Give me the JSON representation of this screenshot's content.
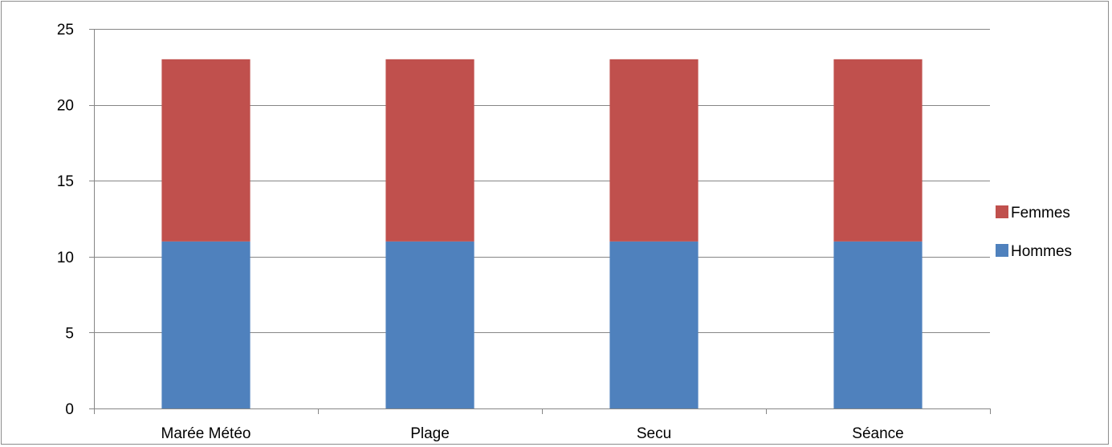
{
  "chart_data": {
    "type": "bar",
    "stacked": true,
    "categories": [
      "Marée Météo",
      "Plage",
      "Secu",
      "Séance"
    ],
    "series": [
      {
        "name": "Hommes",
        "values": [
          11,
          11,
          11,
          11
        ],
        "color": "#4F81BD"
      },
      {
        "name": "Femmes",
        "values": [
          12,
          12,
          12,
          12
        ],
        "color": "#C0504D"
      }
    ],
    "ylim": [
      0,
      25
    ],
    "yticks": [
      0,
      5,
      10,
      15,
      20,
      25
    ],
    "grid": true,
    "legend": "right",
    "legend_order": [
      "Femmes",
      "Hommes"
    ],
    "title": "",
    "xlabel": "",
    "ylabel": ""
  }
}
